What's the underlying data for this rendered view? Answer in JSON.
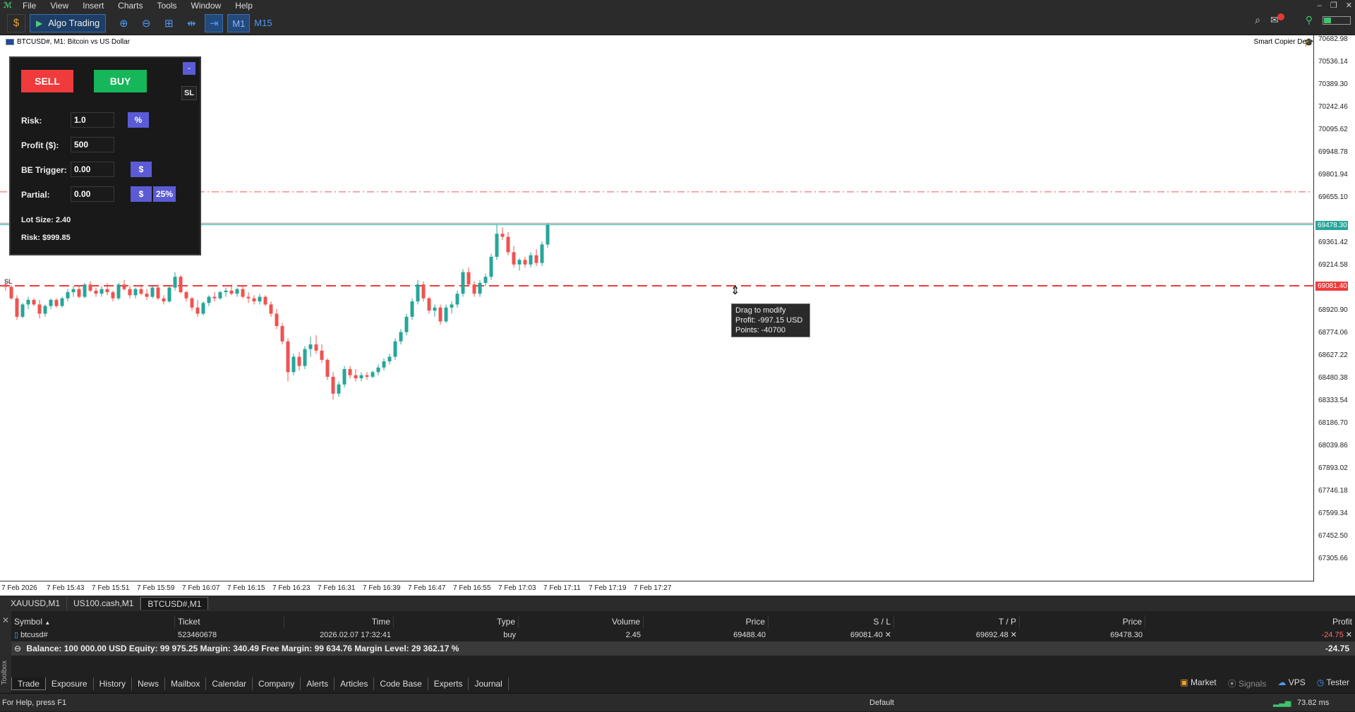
{
  "menu": [
    "File",
    "View",
    "Insert",
    "Charts",
    "Tools",
    "Window",
    "Help"
  ],
  "toolbar": {
    "algo_label": "Algo Trading",
    "timeframes": [
      "M1",
      "M15"
    ],
    "selected_timeframe": "M1"
  },
  "chart": {
    "title": "BTCUSD#, M1:  Bitcoin vs US Dollar",
    "copier": "Smart Copier Dev",
    "price_ticks": [
      "70682.98",
      "70536.14",
      "70389.30",
      "70242.46",
      "70095.62",
      "69948.78",
      "69801.94",
      "69655.10",
      "69361.42",
      "69214.58",
      "68920.90",
      "68774.06",
      "68627.22",
      "68480.38",
      "68333.54",
      "68186.70",
      "68039.86",
      "67893.02",
      "67746.18",
      "67599.34",
      "67452.50",
      "67305.66"
    ],
    "price_tag_current": "69478.30",
    "price_tag_sl": "69081.40",
    "time_ticks": [
      "7 Feb 2026",
      "7 Feb 15:43",
      "7 Feb 15:51",
      "7 Feb 15:59",
      "7 Feb 16:07",
      "7 Feb 16:15",
      "7 Feb 16:23",
      "7 Feb 16:31",
      "7 Feb 16:39",
      "7 Feb 16:47",
      "7 Feb 16:55",
      "7 Feb 17:03",
      "7 Feb 17:11",
      "7 Feb 17:19",
      "7 Feb 17:27"
    ],
    "sl_marker": "SL",
    "tooltip": {
      "line1": "Drag to modify",
      "line2": "Profit: -997.15 USD",
      "line3": "Points: -40700"
    }
  },
  "panel": {
    "sell": "SELL",
    "buy": "BUY",
    "collapse": "-",
    "sl": "SL",
    "risk_label": "Risk:",
    "risk_value": "1.0",
    "risk_unit": "%",
    "profit_label": "Profit ($):",
    "profit_value": "500",
    "be_label": "BE Trigger:",
    "be_value": "0.00",
    "be_unit": "$",
    "partial_label": "Partial:",
    "partial_value": "0.00",
    "partial_unit": "$",
    "partial_pct": "25%",
    "lot_size": "Lot Size: 2.40",
    "risk_amount": "Risk: $999.85"
  },
  "chart_tabs": [
    "XAUUSD,M1",
    "US100.cash,M1",
    "BTCUSD#,M1"
  ],
  "selected_chart_tab": "BTCUSD#,M1",
  "trade_table": {
    "headers": [
      "Symbol",
      "Ticket",
      "Time",
      "Type",
      "Volume",
      "Price",
      "S / L",
      "T / P",
      "Price",
      "Profit"
    ],
    "row": {
      "symbol": "btcusd#",
      "ticket": "523460678",
      "time": "2026.02.07 17:32:41",
      "type": "buy",
      "volume": "2.45",
      "price": "69488.40",
      "sl": "69081.40",
      "tp": "69692.48",
      "cur_price": "69478.30",
      "profit": "-24.75"
    },
    "balance": "Balance: 100 000.00 USD  Equity: 99 975.25  Margin: 340.49  Free Margin: 99 634.76  Margin Level: 29 362.17 %",
    "total_profit": "-24.75"
  },
  "toolbox_label": "Toolbox",
  "bottom_tabs": [
    "Trade",
    "Exposure",
    "History",
    "News",
    "Mailbox",
    "Calendar",
    "Company",
    "Alerts",
    "Articles",
    "Code Base",
    "Experts",
    "Journal"
  ],
  "selected_bottom_tab": "Trade",
  "right_links": [
    "Market",
    "Signals",
    "VPS",
    "Tester"
  ],
  "status": {
    "help": "For Help, press F1",
    "profile": "Default",
    "ping": "73.82 ms"
  },
  "colors": {
    "bull": "#26a69a",
    "bear": "#ef5350",
    "sl_line": "#ef3b3b",
    "accent": "#5b5bd6"
  },
  "candles": [
    [
      69090,
      69110,
      69050,
      69075
    ],
    [
      69075,
      69085,
      68990,
      69000
    ],
    [
      69000,
      69020,
      68860,
      68880
    ],
    [
      68880,
      68970,
      68870,
      68960
    ],
    [
      68960,
      69010,
      68930,
      68990
    ],
    [
      68990,
      69000,
      68950,
      68960
    ],
    [
      68960,
      68990,
      68870,
      68900
    ],
    [
      68900,
      68960,
      68880,
      68950
    ],
    [
      68950,
      69000,
      68930,
      68990
    ],
    [
      68990,
      69000,
      68940,
      68950
    ],
    [
      68950,
      69010,
      68940,
      69000
    ],
    [
      69000,
      69060,
      68980,
      69040
    ],
    [
      69040,
      69080,
      69010,
      69060
    ],
    [
      69060,
      69080,
      69000,
      69010
    ],
    [
      69010,
      69100,
      69000,
      69090
    ],
    [
      69090,
      69110,
      69040,
      69050
    ],
    [
      69050,
      69070,
      69010,
      69030
    ],
    [
      69030,
      69080,
      69010,
      69060
    ],
    [
      69060,
      69100,
      69020,
      69040
    ],
    [
      69040,
      69050,
      68980,
      69000
    ],
    [
      69000,
      69100,
      68990,
      69090
    ],
    [
      69090,
      69120,
      69050,
      69060
    ],
    [
      69060,
      69080,
      69000,
      69020
    ],
    [
      69020,
      69070,
      69000,
      69060
    ],
    [
      69060,
      69090,
      69020,
      69030
    ],
    [
      69030,
      69060,
      68990,
      69010
    ],
    [
      69010,
      69080,
      69000,
      69070
    ],
    [
      69070,
      69090,
      68990,
      69000
    ],
    [
      69000,
      69020,
      68960,
      68980
    ],
    [
      68980,
      69080,
      68970,
      69070
    ],
    [
      69070,
      69170,
      69050,
      69140
    ],
    [
      69140,
      69150,
      69030,
      69040
    ],
    [
      69040,
      69050,
      68980,
      69000
    ],
    [
      69000,
      69010,
      68920,
      68940
    ],
    [
      68940,
      68990,
      68880,
      68900
    ],
    [
      68900,
      68980,
      68890,
      68970
    ],
    [
      68970,
      69020,
      68950,
      69010
    ],
    [
      69010,
      69040,
      68980,
      69000
    ],
    [
      69000,
      69050,
      68990,
      69040
    ],
    [
      69040,
      69070,
      69010,
      69050
    ],
    [
      69050,
      69090,
      69020,
      69030
    ],
    [
      69030,
      69070,
      69010,
      69060
    ],
    [
      69060,
      69080,
      69000,
      69010
    ],
    [
      69010,
      69040,
      68970,
      69000
    ],
    [
      69000,
      69020,
      68960,
      68980
    ],
    [
      68980,
      69030,
      68960,
      69010
    ],
    [
      69010,
      69020,
      68950,
      68960
    ],
    [
      68960,
      68980,
      68880,
      68900
    ],
    [
      68900,
      68930,
      68800,
      68820
    ],
    [
      68820,
      68840,
      68700,
      68720
    ],
    [
      68720,
      68740,
      68460,
      68520
    ],
    [
      68520,
      68640,
      68500,
      68620
    ],
    [
      68620,
      68650,
      68530,
      68560
    ],
    [
      68560,
      68690,
      68540,
      68670
    ],
    [
      68670,
      68750,
      68620,
      68700
    ],
    [
      68700,
      68760,
      68640,
      68660
    ],
    [
      68660,
      68700,
      68580,
      68600
    ],
    [
      68600,
      68610,
      68470,
      68490
    ],
    [
      68490,
      68520,
      68340,
      68380
    ],
    [
      68380,
      68460,
      68360,
      68440
    ],
    [
      68440,
      68560,
      68420,
      68540
    ],
    [
      68540,
      68560,
      68480,
      68500
    ],
    [
      68500,
      68540,
      68460,
      68480
    ],
    [
      68480,
      68520,
      68460,
      68500
    ],
    [
      68500,
      68520,
      68470,
      68490
    ],
    [
      68490,
      68530,
      68480,
      68520
    ],
    [
      68520,
      68570,
      68500,
      68550
    ],
    [
      68550,
      68610,
      68530,
      68590
    ],
    [
      68590,
      68640,
      68570,
      68620
    ],
    [
      68620,
      68740,
      68600,
      68720
    ],
    [
      68720,
      68800,
      68700,
      68780
    ],
    [
      68780,
      68900,
      68760,
      68880
    ],
    [
      68880,
      69000,
      68860,
      68980
    ],
    [
      68980,
      69120,
      68960,
      69090
    ],
    [
      69090,
      69110,
      68980,
      69000
    ],
    [
      69000,
      69010,
      68900,
      68920
    ],
    [
      68920,
      68960,
      68880,
      68940
    ],
    [
      68940,
      68960,
      68830,
      68850
    ],
    [
      68850,
      68960,
      68840,
      68940
    ],
    [
      68940,
      68980,
      68900,
      68960
    ],
    [
      68960,
      69050,
      68940,
      69030
    ],
    [
      69030,
      69190,
      69010,
      69170
    ],
    [
      69170,
      69200,
      69080,
      69090
    ],
    [
      69090,
      69110,
      69010,
      69030
    ],
    [
      69030,
      69120,
      69010,
      69100
    ],
    [
      69100,
      69160,
      69080,
      69140
    ],
    [
      69140,
      69290,
      69120,
      69270
    ],
    [
      69270,
      69480,
      69250,
      69420
    ],
    [
      69420,
      69460,
      69380,
      69400
    ],
    [
      69400,
      69430,
      69280,
      69300
    ],
    [
      69300,
      69340,
      69200,
      69220
    ],
    [
      69220,
      69260,
      69180,
      69250
    ],
    [
      69250,
      69270,
      69200,
      69220
    ],
    [
      69220,
      69300,
      69200,
      69280
    ],
    [
      69280,
      69320,
      69210,
      69230
    ],
    [
      69230,
      69370,
      69210,
      69350
    ],
    [
      69350,
      69490,
      69330,
      69478
    ]
  ]
}
